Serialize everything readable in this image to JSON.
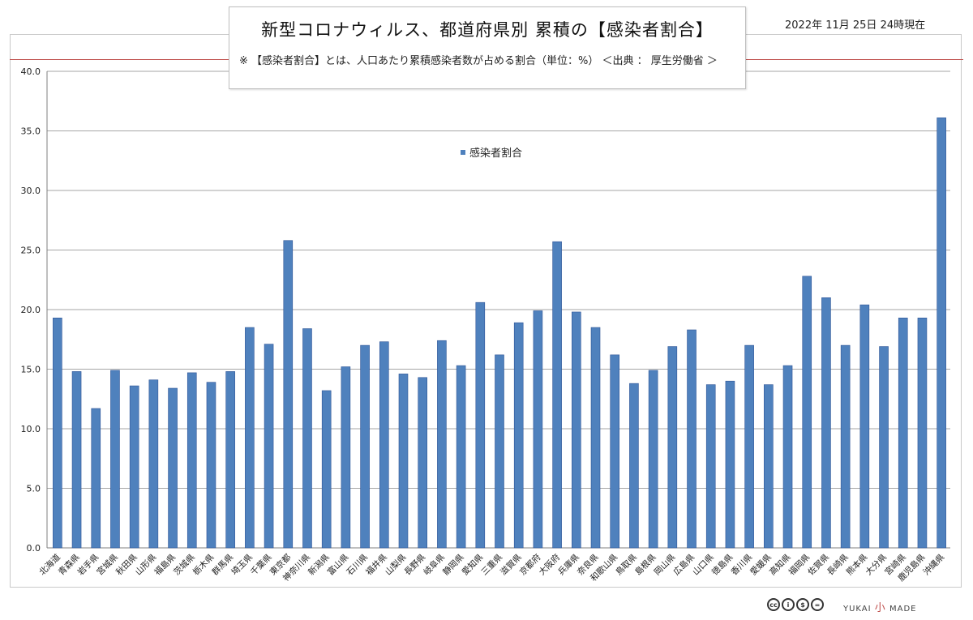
{
  "header": {
    "title": "新型コロナウィルス、都道府県別 累積の【感染者割合】",
    "note": "※ 【感染者割合】とは、人口あたり累積感染者数が占める割合（単位：%） ＜出典 ： 厚生労働省 ＞",
    "date": "2022年 11月 25日 24時現在"
  },
  "footer": {
    "cc_icons": [
      "cc-icon",
      "by-icon",
      "nc-icon",
      "nd-icon"
    ],
    "cc_glyphs": [
      "cc",
      "i",
      "$",
      "="
    ],
    "logo_left": "YUKAI",
    "logo_mid": "小",
    "logo_right": "MADE"
  },
  "colors": {
    "bar": "#4f81bd",
    "bar_edge": "#2f5597",
    "grid": "#a6a6a6",
    "accent": "#c0504d"
  },
  "chart_data": {
    "type": "bar",
    "title": "",
    "xlabel": "",
    "ylabel": "",
    "ylim": [
      0,
      40
    ],
    "yticks": [
      "0.0",
      "5.0",
      "10.0",
      "15.0",
      "20.0",
      "25.0",
      "30.0",
      "35.0",
      "40.0"
    ],
    "grid": true,
    "legend": "top-center",
    "categories": [
      "北海道",
      "青森県",
      "岩手県",
      "宮城県",
      "秋田県",
      "山形県",
      "福島県",
      "茨城県",
      "栃木県",
      "群馬県",
      "埼玉県",
      "千葉県",
      "東京都",
      "神奈川県",
      "新潟県",
      "富山県",
      "石川県",
      "福井県",
      "山梨県",
      "長野県",
      "岐阜県",
      "静岡県",
      "愛知県",
      "三重県",
      "滋賀県",
      "京都府",
      "大阪府",
      "兵庫県",
      "奈良県",
      "和歌山県",
      "鳥取県",
      "島根県",
      "岡山県",
      "広島県",
      "山口県",
      "徳島県",
      "香川県",
      "愛媛県",
      "高知県",
      "福岡県",
      "佐賀県",
      "長崎県",
      "熊本県",
      "大分県",
      "宮崎県",
      "鹿児島県",
      "沖縄県"
    ],
    "series": [
      {
        "name": "感染者割合",
        "values": [
          19.3,
          14.8,
          11.7,
          14.9,
          13.6,
          14.1,
          13.4,
          14.7,
          13.9,
          14.8,
          18.5,
          17.1,
          25.8,
          18.4,
          13.2,
          15.2,
          17.0,
          17.3,
          14.6,
          14.3,
          17.4,
          15.3,
          20.6,
          16.2,
          18.9,
          19.9,
          25.7,
          19.8,
          18.5,
          16.2,
          13.8,
          14.9,
          16.9,
          18.3,
          13.7,
          14.0,
          17.0,
          13.7,
          15.3,
          22.8,
          21.0,
          17.0,
          20.4,
          16.9,
          19.3,
          19.3,
          36.1
        ]
      }
    ]
  }
}
